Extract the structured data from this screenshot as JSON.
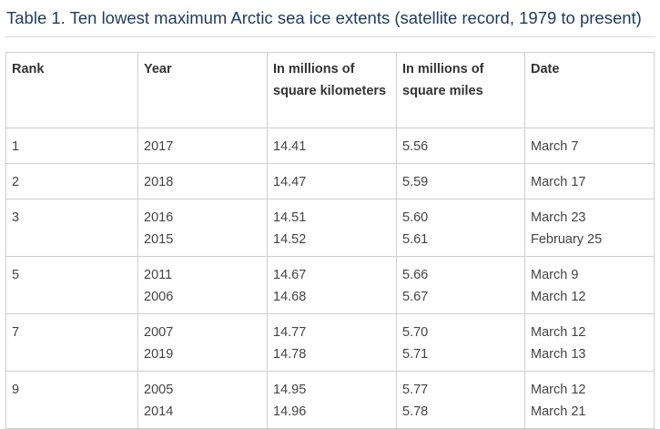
{
  "caption": "Table 1. Ten lowest maximum Arctic sea ice extents (satellite record, 1979 to present)",
  "headers": {
    "rank": "Rank",
    "year": "Year",
    "km": "In millions of square kilometers",
    "mi": "In millions of square miles",
    "date": "Date"
  },
  "rows": [
    {
      "rank": "1",
      "years": [
        "2017"
      ],
      "km": [
        "14.41"
      ],
      "mi": [
        "5.56"
      ],
      "dates": [
        "March 7"
      ]
    },
    {
      "rank": "2",
      "years": [
        "2018"
      ],
      "km": [
        "14.47"
      ],
      "mi": [
        "5.59"
      ],
      "dates": [
        "March 17"
      ]
    },
    {
      "rank": "3",
      "years": [
        "2016",
        "2015"
      ],
      "km": [
        "14.51",
        "14.52"
      ],
      "mi": [
        "5.60",
        "5.61"
      ],
      "dates": [
        "March 23",
        "February 25"
      ]
    },
    {
      "rank": "5",
      "years": [
        "2011",
        "2006"
      ],
      "km": [
        "14.67",
        "14.68"
      ],
      "mi": [
        "5.66",
        "5.67"
      ],
      "dates": [
        "March 9",
        "March 12"
      ]
    },
    {
      "rank": "7",
      "years": [
        "2007",
        "2019"
      ],
      "km": [
        "14.77",
        "14.78"
      ],
      "mi": [
        "5.70",
        "5.71"
      ],
      "dates": [
        "March 12",
        "March 13"
      ]
    },
    {
      "rank": "9",
      "years": [
        "2005",
        "2014"
      ],
      "km": [
        "14.95",
        "14.96"
      ],
      "mi": [
        "5.77",
        "5.78"
      ],
      "dates": [
        "March 12",
        "March 21"
      ]
    }
  ]
}
